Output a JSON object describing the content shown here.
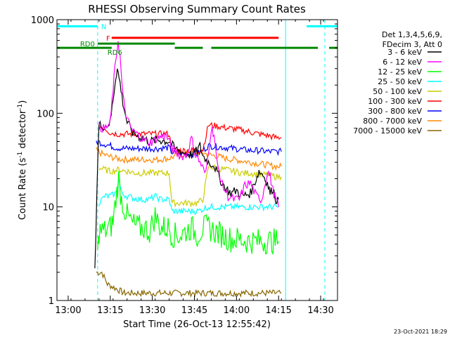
{
  "chart_data": {
    "type": "line",
    "title": "RHESSI Observing Summary Count Rates",
    "xlabel": "Start Time (26-Oct-13 12:55:42)",
    "ylabel": "Count Rate (s^-1 detector^-1)",
    "ylabel_parts": [
      "Count Rate (s",
      "-1",
      " detector",
      "-1",
      ")"
    ],
    "yscale": "log",
    "ylim": [
      1,
      1000
    ],
    "xlim_min": [
      -4,
      96
    ],
    "x_ticks": [
      {
        "m": 0,
        "label": "13:00"
      },
      {
        "m": 15,
        "label": "13:15"
      },
      {
        "m": 30,
        "label": "13:30"
      },
      {
        "m": 45,
        "label": "13:45"
      },
      {
        "m": 60,
        "label": "14:00"
      },
      {
        "m": 75,
        "label": "14:15"
      },
      {
        "m": 90,
        "label": "14:30"
      }
    ],
    "y_ticks": [
      {
        "v": 1,
        "label": "1"
      },
      {
        "v": 10,
        "label": "10"
      },
      {
        "v": 100,
        "label": "100"
      },
      {
        "v": 1000,
        "label": "1000"
      }
    ],
    "legend_header": [
      "Det 1,3,4,5,6,9,",
      "FDecim 3, Att 0"
    ],
    "series": [
      {
        "name": "3 - 6 keV",
        "color": "#000000",
        "points": [
          [
            9.5,
            2
          ],
          [
            10.5,
            30
          ],
          [
            11,
            75
          ],
          [
            13,
            72
          ],
          [
            15,
            80
          ],
          [
            16,
            140
          ],
          [
            17,
            250
          ],
          [
            17.5,
            300
          ],
          [
            18.5,
            210
          ],
          [
            19.5,
            130
          ],
          [
            21,
            80
          ],
          [
            23,
            62
          ],
          [
            26,
            55
          ],
          [
            29,
            50
          ],
          [
            32,
            52
          ],
          [
            36,
            50
          ],
          [
            38,
            42
          ],
          [
            41,
            38
          ],
          [
            44,
            36
          ],
          [
            46,
            40
          ],
          [
            47,
            45
          ],
          [
            48,
            35
          ],
          [
            50,
            30
          ],
          [
            52,
            28
          ],
          [
            54,
            20
          ],
          [
            56,
            16
          ],
          [
            58,
            14
          ],
          [
            60,
            15
          ],
          [
            62,
            13
          ],
          [
            65,
            14
          ],
          [
            67,
            20
          ],
          [
            68,
            24
          ],
          [
            69.5,
            22
          ],
          [
            71,
            18
          ],
          [
            72,
            14
          ],
          [
            73,
            16
          ],
          [
            74,
            12
          ],
          [
            75,
            12
          ]
        ]
      },
      {
        "name": "6 - 12 keV",
        "color": "#ff00ff",
        "points": [
          [
            11,
            72
          ],
          [
            13,
            68
          ],
          [
            15,
            78
          ],
          [
            16,
            180
          ],
          [
            17,
            380
          ],
          [
            17.8,
            600
          ],
          [
            18.5,
            400
          ],
          [
            19.5,
            150
          ],
          [
            21,
            85
          ],
          [
            23,
            65
          ],
          [
            26,
            55
          ],
          [
            29,
            48
          ],
          [
            32,
            55
          ],
          [
            35,
            58
          ],
          [
            37,
            42
          ],
          [
            40,
            35
          ],
          [
            42,
            35
          ],
          [
            44,
            55
          ],
          [
            45,
            38
          ],
          [
            47,
            30
          ],
          [
            49,
            22
          ],
          [
            51,
            70
          ],
          [
            52,
            60
          ],
          [
            53,
            30
          ],
          [
            55,
            17
          ],
          [
            57,
            13
          ],
          [
            59,
            12
          ],
          [
            61,
            12
          ],
          [
            63,
            17
          ],
          [
            65,
            18
          ],
          [
            67,
            13
          ],
          [
            69,
            12
          ],
          [
            71,
            24
          ],
          [
            72,
            21
          ],
          [
            73,
            15
          ],
          [
            74,
            12
          ],
          [
            75,
            10
          ]
        ]
      },
      {
        "name": "12 - 25 keV",
        "color": "#00ff00",
        "points": [
          [
            10.5,
            3
          ],
          [
            11,
            5.5
          ],
          [
            13,
            5.5
          ],
          [
            15,
            6
          ],
          [
            16,
            7
          ],
          [
            17,
            12
          ],
          [
            18,
            20
          ],
          [
            19,
            12
          ],
          [
            21,
            8
          ],
          [
            23,
            6.5
          ],
          [
            25,
            6
          ],
          [
            27,
            6
          ],
          [
            29,
            5.5
          ],
          [
            31,
            8
          ],
          [
            33,
            6
          ],
          [
            36,
            6
          ],
          [
            37,
            5
          ],
          [
            40,
            5
          ],
          [
            42,
            5.5
          ],
          [
            44,
            6
          ],
          [
            46,
            5
          ],
          [
            48,
            6
          ],
          [
            50,
            6
          ],
          [
            52,
            5.5
          ],
          [
            55,
            5
          ],
          [
            58,
            4.5
          ],
          [
            61,
            4.5
          ],
          [
            64,
            4.3
          ],
          [
            67,
            4.3
          ],
          [
            70,
            4.3
          ],
          [
            73,
            4.3
          ],
          [
            75,
            4.3
          ]
        ]
      },
      {
        "name": "25 - 50 keV",
        "color": "#00ffff",
        "points": [
          [
            11,
            11
          ],
          [
            13,
            13
          ],
          [
            15,
            13
          ],
          [
            17,
            14
          ],
          [
            18,
            20
          ],
          [
            19,
            14
          ],
          [
            21,
            13
          ],
          [
            23,
            12.5
          ],
          [
            26,
            12
          ],
          [
            29,
            12
          ],
          [
            31,
            13
          ],
          [
            33,
            12
          ],
          [
            36,
            12
          ],
          [
            37,
            9
          ],
          [
            40,
            9
          ],
          [
            43,
            9
          ],
          [
            46,
            9
          ],
          [
            48,
            9.5
          ],
          [
            50,
            10
          ],
          [
            52,
            10
          ],
          [
            55,
            10
          ],
          [
            58,
            10
          ],
          [
            61,
            10
          ],
          [
            64,
            10
          ],
          [
            67,
            10
          ],
          [
            70,
            10
          ],
          [
            73,
            10
          ],
          [
            75,
            10
          ]
        ]
      },
      {
        "name": "50 - 100 keV",
        "color": "#cccc00",
        "points": [
          [
            11,
            26
          ],
          [
            13,
            25
          ],
          [
            15,
            24
          ],
          [
            18,
            25
          ],
          [
            21,
            24
          ],
          [
            24,
            23
          ],
          [
            27,
            23
          ],
          [
            30,
            23
          ],
          [
            33,
            23
          ],
          [
            36,
            23
          ],
          [
            37,
            11
          ],
          [
            40,
            11
          ],
          [
            43,
            11
          ],
          [
            46,
            11
          ],
          [
            48,
            12
          ],
          [
            50,
            27
          ],
          [
            53,
            26
          ],
          [
            56,
            25
          ],
          [
            59,
            24
          ],
          [
            62,
            23
          ],
          [
            65,
            23
          ],
          [
            68,
            22
          ],
          [
            71,
            22
          ],
          [
            74,
            21
          ],
          [
            76,
            21
          ]
        ]
      },
      {
        "name": "100 - 300 keV",
        "color": "#ff0000",
        "points": [
          [
            11,
            72
          ],
          [
            13,
            70
          ],
          [
            15,
            62
          ],
          [
            18,
            60
          ],
          [
            21,
            60
          ],
          [
            24,
            60
          ],
          [
            27,
            60
          ],
          [
            30,
            60
          ],
          [
            33,
            60
          ],
          [
            36,
            60
          ],
          [
            37,
            40
          ],
          [
            40,
            40
          ],
          [
            43,
            40
          ],
          [
            46,
            40
          ],
          [
            48,
            41
          ],
          [
            50,
            75
          ],
          [
            53,
            73
          ],
          [
            56,
            70
          ],
          [
            59,
            68
          ],
          [
            62,
            66
          ],
          [
            65,
            63
          ],
          [
            68,
            60
          ],
          [
            71,
            58
          ],
          [
            74,
            55
          ],
          [
            76,
            55
          ]
        ]
      },
      {
        "name": "300 - 800 keV",
        "color": "#0000ff",
        "points": [
          [
            10,
            50
          ],
          [
            12,
            48
          ],
          [
            14,
            46
          ],
          [
            17,
            43
          ],
          [
            20,
            42
          ],
          [
            23,
            42
          ],
          [
            26,
            42
          ],
          [
            29,
            42
          ],
          [
            32,
            42
          ],
          [
            36,
            43
          ],
          [
            37,
            38
          ],
          [
            40,
            37
          ],
          [
            43,
            37
          ],
          [
            46,
            37
          ],
          [
            48,
            40
          ],
          [
            50,
            45
          ],
          [
            53,
            44
          ],
          [
            56,
            43
          ],
          [
            59,
            42
          ],
          [
            62,
            41
          ],
          [
            65,
            40
          ],
          [
            68,
            40
          ],
          [
            71,
            39
          ],
          [
            74,
            39
          ],
          [
            76,
            39
          ]
        ]
      },
      {
        "name": "800 - 7000 keV",
        "color": "#ff8800",
        "points": [
          [
            10,
            40
          ],
          [
            12,
            37
          ],
          [
            14,
            35
          ],
          [
            17,
            33
          ],
          [
            20,
            32
          ],
          [
            23,
            32
          ],
          [
            26,
            32
          ],
          [
            29,
            32
          ],
          [
            32,
            32
          ],
          [
            36,
            33
          ],
          [
            37,
            34
          ],
          [
            40,
            36
          ],
          [
            43,
            37
          ],
          [
            46,
            38
          ],
          [
            48,
            38
          ],
          [
            50,
            36
          ],
          [
            53,
            35
          ],
          [
            56,
            33
          ],
          [
            59,
            32
          ],
          [
            62,
            31
          ],
          [
            65,
            30
          ],
          [
            68,
            29
          ],
          [
            71,
            28
          ],
          [
            74,
            27
          ],
          [
            76,
            27
          ]
        ]
      },
      {
        "name": "7000 - 15000 keV",
        "color": "#886600",
        "points": [
          [
            10,
            2
          ],
          [
            12,
            2
          ],
          [
            14,
            1.5
          ],
          [
            20,
            1.2
          ],
          [
            30,
            1.2
          ],
          [
            40,
            1.2
          ],
          [
            50,
            1.2
          ],
          [
            60,
            1.2
          ],
          [
            70,
            1.2
          ],
          [
            76,
            1.2
          ]
        ]
      }
    ],
    "flags": [
      {
        "label": "N",
        "color": "#00ffff",
        "value": 850,
        "segments": [
          [
            -4,
            10.5
          ],
          [
            85,
            96
          ]
        ]
      },
      {
        "label": "F",
        "color": "#ff0000",
        "value": 640,
        "segments": [
          [
            15.5,
            75
          ]
        ]
      },
      {
        "label": "RD0",
        "color": "#008800",
        "value": 555,
        "segments": [
          [
            10.5,
            38
          ]
        ]
      },
      {
        "label": "RD6",
        "color": "#008800",
        "value": 500,
        "segments": [
          [
            -4,
            15.5
          ],
          [
            38,
            48
          ],
          [
            51,
            89
          ],
          [
            93,
            96
          ]
        ]
      }
    ],
    "dashed_markers_min": [
      10.5,
      91.5
    ],
    "solid_markers_min": [
      77.5
    ],
    "grid": false,
    "legend_position": "right"
  },
  "timestamp": "23-Oct-2021 18:29"
}
